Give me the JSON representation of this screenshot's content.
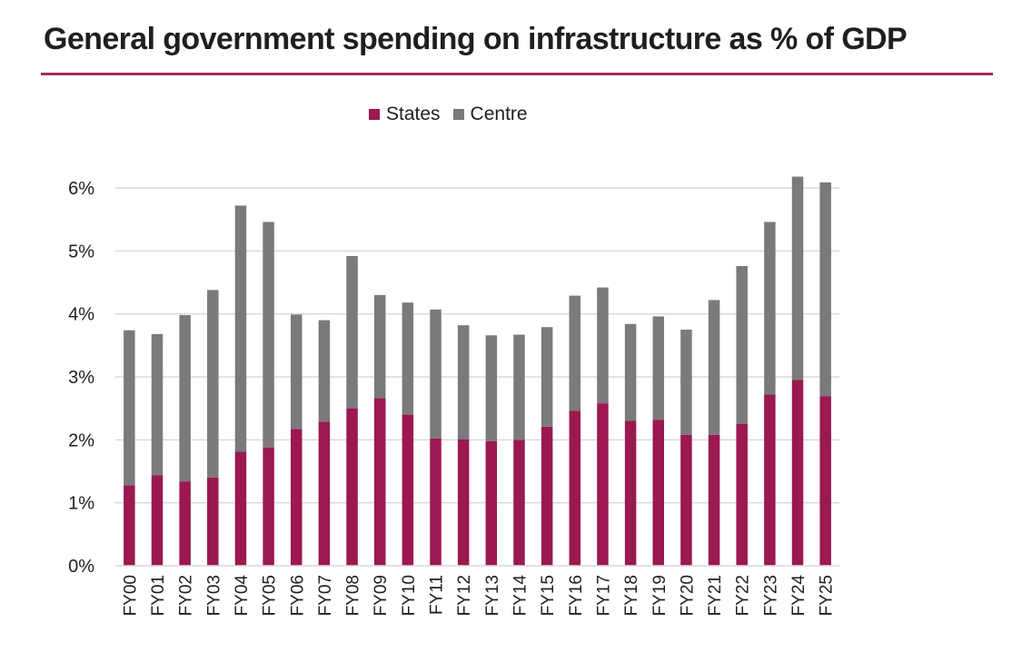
{
  "chart_data": {
    "type": "bar",
    "stacked": true,
    "title": "General government spending on infrastructure as % of GDP",
    "xlabel": "",
    "ylabel": "",
    "ylim": [
      0,
      6
    ],
    "yticks": [
      0,
      1,
      2,
      3,
      4,
      5,
      6
    ],
    "ytick_labels": [
      "0%",
      "1%",
      "2%",
      "3%",
      "4%",
      "5%",
      "6%"
    ],
    "grid": true,
    "legend_position": "top-center",
    "categories": [
      "FY00",
      "FY01",
      "FY02",
      "FY03",
      "FY04",
      "FY05",
      "FY06",
      "FY07",
      "FY08",
      "FY09",
      "FY10",
      "FY11",
      "FY12",
      "FY13",
      "FY14",
      "FY15",
      "FY16",
      "FY17",
      "FY18",
      "FY19",
      "FY20",
      "FY21",
      "FY22",
      "FY23",
      "FY24",
      "FY25"
    ],
    "series": [
      {
        "name": "States",
        "color": "#9b1850",
        "values": [
          1.28,
          1.44,
          1.34,
          1.4,
          1.81,
          1.88,
          2.17,
          2.29,
          2.5,
          2.66,
          2.4,
          2.02,
          2.01,
          1.98,
          2.0,
          2.21,
          2.46,
          2.58,
          2.3,
          2.32,
          2.08,
          2.08,
          2.25,
          2.72,
          2.95,
          2.69
        ]
      },
      {
        "name": "Centre",
        "color": "#7a7a7a",
        "values": [
          2.46,
          2.24,
          2.64,
          2.98,
          3.91,
          3.58,
          1.82,
          1.61,
          2.42,
          1.64,
          1.78,
          2.05,
          1.81,
          1.68,
          1.67,
          1.58,
          1.83,
          1.84,
          1.54,
          1.64,
          1.67,
          2.14,
          2.51,
          2.74,
          3.23,
          3.4
        ]
      }
    ]
  },
  "colors": {
    "accent_rule": "#a4285a",
    "gridline": "#d9d9d9"
  }
}
